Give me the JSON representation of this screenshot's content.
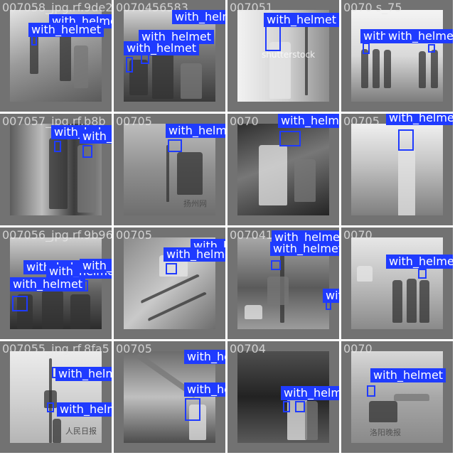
{
  "grid": {
    "background": "#ffffff",
    "tile_color": "#727272"
  },
  "annotation_color": "#1f3bff",
  "tiles": [
    {
      "filename": "007058_jpg.rf.9de2",
      "labels": [
        "with_helmet",
        "with_helmet"
      ]
    },
    {
      "filename": "0070456583",
      "labels": [
        "with_helmet",
        "with_helmet",
        "with_helmet"
      ]
    },
    {
      "filename": "007051",
      "labels": [
        "with_helmet"
      ],
      "watermark": "shutterstock"
    },
    {
      "filename": "0070 s_75",
      "labels": [
        "with_helmet",
        "with_helmet"
      ]
    },
    {
      "filename": "007057_jpg.rf.b8b",
      "labels": [
        "with_helmet",
        "with_helmet"
      ]
    },
    {
      "filename": "00705",
      "labels": [
        "with_helmet"
      ],
      "watermark": "扬州网"
    },
    {
      "filename": "0070",
      "labels": [
        "with_helmet"
      ]
    },
    {
      "filename": "00705",
      "labels": [
        "with_helmet"
      ]
    },
    {
      "filename": "007056_jpg.rf.9b96",
      "labels": [
        "with_helmet",
        "with_helmet",
        "with_helmet",
        "with_helmet"
      ]
    },
    {
      "filename": "00705",
      "labels": [
        "with_helmet",
        "with_helmet"
      ]
    },
    {
      "filename": "007041",
      "labels": [
        "with_helmet",
        "with_helmet",
        "with_helmet"
      ]
    },
    {
      "filename": "0070",
      "labels": [
        "with_helmet"
      ]
    },
    {
      "filename": "007055_jpg.rf.8fa5",
      "labels": [
        "with_helmet",
        "with_helmet"
      ],
      "watermark": "人民日报"
    },
    {
      "filename": "00705",
      "labels": [
        "with_helmet",
        "with_helmet"
      ]
    },
    {
      "filename": "00704",
      "labels": [
        "with_helmet"
      ]
    },
    {
      "filename": "0070",
      "labels": [
        "with_helmet"
      ],
      "watermark": "洛阳晚报"
    }
  ]
}
